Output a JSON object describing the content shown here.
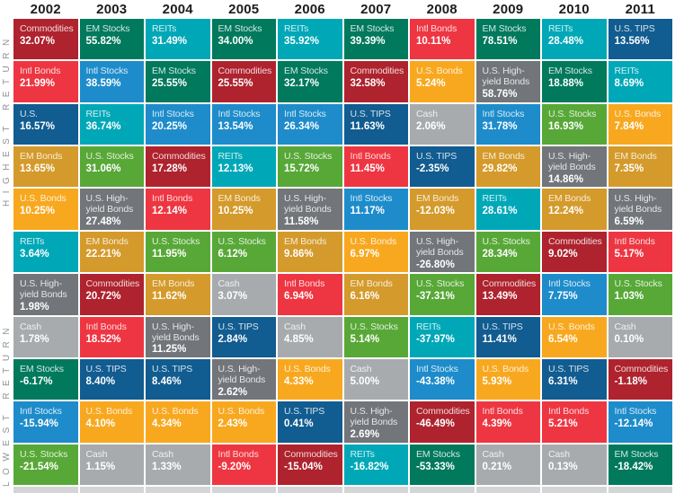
{
  "left_axis": {
    "top_label": "HIGHEST RETURN",
    "bottom_label": "LOWEST RETURN"
  },
  "chart_data": {
    "type": "table",
    "description_layout": "ranked annual asset-class returns quilt; each column sorted highest to lowest return",
    "years": [
      "2002",
      "2003",
      "2004",
      "2005",
      "2006",
      "2007",
      "2008",
      "2009",
      "2010",
      "2011"
    ],
    "palette": {
      "commodities": {
        "label": "Commodities",
        "color": "#ae232e"
      },
      "intl_bonds": {
        "label": "Intl Bonds",
        "color": "#ee3642"
      },
      "us_tips": {
        "label": "U.S. TIPS",
        "color": "#115c90"
      },
      "em_bonds": {
        "label": "EM Bonds",
        "color": "#d49a2b"
      },
      "us_bonds": {
        "label": "U.S. Bonds",
        "color": "#f8a81f"
      },
      "reits": {
        "label": "REITs",
        "color": "#00a8b7"
      },
      "em_stocks": {
        "label": "EM Stocks",
        "color": "#00795d"
      },
      "intl_stocks": {
        "label": "Intl Stocks",
        "color": "#1e8ccb"
      },
      "us_stocks": {
        "label": "U.S. Stocks",
        "color": "#58a838"
      },
      "us_hy_bonds": {
        "label": "U.S. High-yield Bonds",
        "color": "#727579"
      },
      "cash": {
        "label": "Cash",
        "color": "#a8abae"
      }
    },
    "columns": [
      {
        "year": "2002",
        "cells": [
          {
            "label": "Commodities",
            "value": "32.07%",
            "key": "commodities"
          },
          {
            "label": "Intl Bonds",
            "value": "21.99%",
            "key": "intl_bonds"
          },
          {
            "label": "U.S.",
            "value": "16.57%",
            "key": "us_tips"
          },
          {
            "label": "EM Bonds",
            "value": "13.65%",
            "key": "em_bonds"
          },
          {
            "label": "U.S. Bonds",
            "value": "10.25%",
            "key": "us_bonds"
          },
          {
            "label": "REITs",
            "value": "3.64%",
            "key": "reits"
          },
          {
            "label": "U.S. High-yield Bonds",
            "value": "1.98%",
            "key": "us_hy_bonds"
          },
          {
            "label": "Cash",
            "value": "1.78%",
            "key": "cash"
          },
          {
            "label": "EM Stocks",
            "value": "-6.17%",
            "key": "em_stocks"
          },
          {
            "label": "Intl Stocks",
            "value": "-15.94%",
            "key": "intl_stocks"
          },
          {
            "label": "U.S. Stocks",
            "value": "-21.54%",
            "key": "us_stocks"
          }
        ]
      },
      {
        "year": "2003",
        "cells": [
          {
            "label": "EM Stocks",
            "value": "55.82%",
            "key": "em_stocks"
          },
          {
            "label": "Intl Stocks",
            "value": "38.59%",
            "key": "intl_stocks"
          },
          {
            "label": "REITs",
            "value": "36.74%",
            "key": "reits"
          },
          {
            "label": "U.S. Stocks",
            "value": "31.06%",
            "key": "us_stocks"
          },
          {
            "label": "U.S. High-yield Bonds",
            "value": "27.48%",
            "key": "us_hy_bonds"
          },
          {
            "label": "EM Bonds",
            "value": "22.21%",
            "key": "em_bonds"
          },
          {
            "label": "Commodities",
            "value": "20.72%",
            "key": "commodities"
          },
          {
            "label": "Intl Bonds",
            "value": "18.52%",
            "key": "intl_bonds"
          },
          {
            "label": "U.S. TIPS",
            "value": "8.40%",
            "key": "us_tips"
          },
          {
            "label": "U.S. Bonds",
            "value": "4.10%",
            "key": "us_bonds"
          },
          {
            "label": "Cash",
            "value": "1.15%",
            "key": "cash"
          }
        ]
      },
      {
        "year": "2004",
        "cells": [
          {
            "label": "REITs",
            "value": "31.49%",
            "key": "reits"
          },
          {
            "label": "EM Stocks",
            "value": "25.55%",
            "key": "em_stocks"
          },
          {
            "label": "Intl Stocks",
            "value": "20.25%",
            "key": "intl_stocks"
          },
          {
            "label": "Commodities",
            "value": "17.28%",
            "key": "commodities"
          },
          {
            "label": "Intl Bonds",
            "value": "12.14%",
            "key": "intl_bonds"
          },
          {
            "label": "U.S. Stocks",
            "value": "11.95%",
            "key": "us_stocks"
          },
          {
            "label": "EM Bonds",
            "value": "11.62%",
            "key": "em_bonds"
          },
          {
            "label": "U.S. High-yield Bonds",
            "value": "11.25%",
            "key": "us_hy_bonds"
          },
          {
            "label": "U.S. TIPS",
            "value": "8.46%",
            "key": "us_tips"
          },
          {
            "label": "U.S. Bonds",
            "value": "4.34%",
            "key": "us_bonds"
          },
          {
            "label": "Cash",
            "value": "1.33%",
            "key": "cash"
          }
        ]
      },
      {
        "year": "2005",
        "cells": [
          {
            "label": "EM Stocks",
            "value": "34.00%",
            "key": "em_stocks"
          },
          {
            "label": "Commodities",
            "value": "25.55%",
            "key": "commodities"
          },
          {
            "label": "Intl Stocks",
            "value": "13.54%",
            "key": "intl_stocks"
          },
          {
            "label": "REITs",
            "value": "12.13%",
            "key": "reits"
          },
          {
            "label": "EM Bonds",
            "value": "10.25%",
            "key": "em_bonds"
          },
          {
            "label": "U.S. Stocks",
            "value": "6.12%",
            "key": "us_stocks"
          },
          {
            "label": "Cash",
            "value": "3.07%",
            "key": "cash"
          },
          {
            "label": "U.S. TIPS",
            "value": "2.84%",
            "key": "us_tips"
          },
          {
            "label": "U.S. High-yield Bonds",
            "value": "2.62%",
            "key": "us_hy_bonds"
          },
          {
            "label": "U.S. Bonds",
            "value": "2.43%",
            "key": "us_bonds"
          },
          {
            "label": "Intl Bonds",
            "value": "-9.20%",
            "key": "intl_bonds"
          }
        ]
      },
      {
        "year": "2006",
        "cells": [
          {
            "label": "REITs",
            "value": "35.92%",
            "key": "reits"
          },
          {
            "label": "EM Stocks",
            "value": "32.17%",
            "key": "em_stocks"
          },
          {
            "label": "Intl Stocks",
            "value": "26.34%",
            "key": "intl_stocks"
          },
          {
            "label": "U.S. Stocks",
            "value": "15.72%",
            "key": "us_stocks"
          },
          {
            "label": "U.S. High-yield Bonds",
            "value": "11.58%",
            "key": "us_hy_bonds"
          },
          {
            "label": "EM Bonds",
            "value": "9.86%",
            "key": "em_bonds"
          },
          {
            "label": "Intl Bonds",
            "value": "6.94%",
            "key": "intl_bonds"
          },
          {
            "label": "Cash",
            "value": "4.85%",
            "key": "cash"
          },
          {
            "label": "U.S. Bonds",
            "value": "4.33%",
            "key": "us_bonds"
          },
          {
            "label": "U.S. TIPS",
            "value": "0.41%",
            "key": "us_tips"
          },
          {
            "label": "Commodities",
            "value": "-15.04%",
            "key": "commodities"
          }
        ]
      },
      {
        "year": "2007",
        "cells": [
          {
            "label": "EM Stocks",
            "value": "39.39%",
            "key": "em_stocks"
          },
          {
            "label": "Commodities",
            "value": "32.58%",
            "key": "commodities"
          },
          {
            "label": "U.S. TIPS",
            "value": "11.63%",
            "key": "us_tips"
          },
          {
            "label": "Intl Bonds",
            "value": "11.45%",
            "key": "intl_bonds"
          },
          {
            "label": "Intl Stocks",
            "value": "11.17%",
            "key": "intl_stocks"
          },
          {
            "label": "U.S. Bonds",
            "value": "6.97%",
            "key": "us_bonds"
          },
          {
            "label": "EM Bonds",
            "value": "6.16%",
            "key": "em_bonds"
          },
          {
            "label": "U.S. Stocks",
            "value": "5.14%",
            "key": "us_stocks"
          },
          {
            "label": "Cash",
            "value": "5.00%",
            "key": "cash"
          },
          {
            "label": "U.S. High-yield Bonds",
            "value": "2.69%",
            "key": "us_hy_bonds"
          },
          {
            "label": "REITs",
            "value": "-16.82%",
            "key": "reits"
          }
        ]
      },
      {
        "year": "2008",
        "cells": [
          {
            "label": "Intl Bonds",
            "value": "10.11%",
            "key": "intl_bonds"
          },
          {
            "label": "U.S. Bonds",
            "value": "5.24%",
            "key": "us_bonds"
          },
          {
            "label": "Cash",
            "value": "2.06%",
            "key": "cash"
          },
          {
            "label": "U.S. TIPS",
            "value": "-2.35%",
            "key": "us_tips"
          },
          {
            "label": "EM Bonds",
            "value": "-12.03%",
            "key": "em_bonds"
          },
          {
            "label": "U.S. High-yield Bonds",
            "value": "-26.80%",
            "key": "us_hy_bonds"
          },
          {
            "label": "U.S. Stocks",
            "value": "-37.31%",
            "key": "us_stocks"
          },
          {
            "label": "REITs",
            "value": "-37.97%",
            "key": "reits"
          },
          {
            "label": "Intl Stocks",
            "value": "-43.38%",
            "key": "intl_stocks"
          },
          {
            "label": "Commodities",
            "value": "-46.49%",
            "key": "commodities"
          },
          {
            "label": "EM Stocks",
            "value": "-53.33%",
            "key": "em_stocks"
          }
        ]
      },
      {
        "year": "2009",
        "cells": [
          {
            "label": "EM Stocks",
            "value": "78.51%",
            "key": "em_stocks"
          },
          {
            "label": "U.S. High-yield Bonds",
            "value": "58.76%",
            "key": "us_hy_bonds"
          },
          {
            "label": "Intl Stocks",
            "value": "31.78%",
            "key": "intl_stocks"
          },
          {
            "label": "EM Bonds",
            "value": "29.82%",
            "key": "em_bonds"
          },
          {
            "label": "REITs",
            "value": "28.61%",
            "key": "reits"
          },
          {
            "label": "U.S. Stocks",
            "value": "28.34%",
            "key": "us_stocks"
          },
          {
            "label": "Commodities",
            "value": "13.49%",
            "key": "commodities"
          },
          {
            "label": "U.S. TIPS",
            "value": "11.41%",
            "key": "us_tips"
          },
          {
            "label": "U.S. Bonds",
            "value": "5.93%",
            "key": "us_bonds"
          },
          {
            "label": "Intl Bonds",
            "value": "4.39%",
            "key": "intl_bonds"
          },
          {
            "label": "Cash",
            "value": "0.21%",
            "key": "cash"
          }
        ]
      },
      {
        "year": "2010",
        "cells": [
          {
            "label": "REITs",
            "value": "28.48%",
            "key": "reits"
          },
          {
            "label": "EM Stocks",
            "value": "18.88%",
            "key": "em_stocks"
          },
          {
            "label": "U.S. Stocks",
            "value": "16.93%",
            "key": "us_stocks"
          },
          {
            "label": "U.S. High-yield Bonds",
            "value": "14.86%",
            "key": "us_hy_bonds"
          },
          {
            "label": "EM Bonds",
            "value": "12.24%",
            "key": "em_bonds"
          },
          {
            "label": "Commodities",
            "value": "9.02%",
            "key": "commodities"
          },
          {
            "label": "Intl Stocks",
            "value": "7.75%",
            "key": "intl_stocks"
          },
          {
            "label": "U.S. Bonds",
            "value": "6.54%",
            "key": "us_bonds"
          },
          {
            "label": "U.S. TIPS",
            "value": "6.31%",
            "key": "us_tips"
          },
          {
            "label": "Intl Bonds",
            "value": "5.21%",
            "key": "intl_bonds"
          },
          {
            "label": "Cash",
            "value": "0.13%",
            "key": "cash"
          }
        ]
      },
      {
        "year": "2011",
        "cells": [
          {
            "label": "U.S. TIPS",
            "value": "13.56%",
            "key": "us_tips"
          },
          {
            "label": "REITs",
            "value": "8.69%",
            "key": "reits"
          },
          {
            "label": "U.S. Bonds",
            "value": "7.84%",
            "key": "us_bonds"
          },
          {
            "label": "EM Bonds",
            "value": "7.35%",
            "key": "em_bonds"
          },
          {
            "label": "U.S. High-yield Bonds",
            "value": "6.59%",
            "key": "us_hy_bonds"
          },
          {
            "label": "Intl Bonds",
            "value": "5.17%",
            "key": "intl_bonds"
          },
          {
            "label": "U.S. Stocks",
            "value": "1.03%",
            "key": "us_stocks"
          },
          {
            "label": "Cash",
            "value": "0.10%",
            "key": "cash"
          },
          {
            "label": "Commodities",
            "value": "-1.18%",
            "key": "commodities"
          },
          {
            "label": "Intl Stocks",
            "value": "-12.14%",
            "key": "intl_stocks"
          },
          {
            "label": "EM Stocks",
            "value": "-18.42%",
            "key": "em_stocks"
          }
        ]
      }
    ]
  }
}
